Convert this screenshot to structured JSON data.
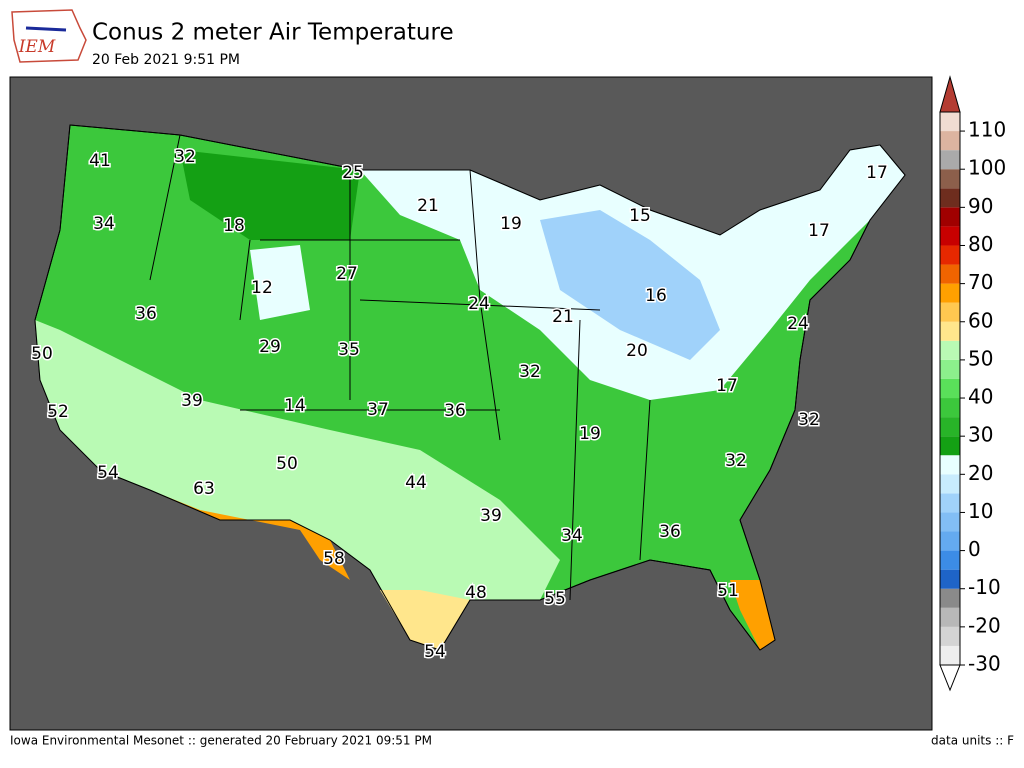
{
  "header": {
    "logo_text": "IEM",
    "title": "Conus 2 meter Air Temperature",
    "subtitle": "20 Feb 2021 9:51 PM"
  },
  "map": {
    "units": "F",
    "labels": [
      41,
      32,
      25,
      17,
      21,
      19,
      15,
      34,
      18,
      17,
      27,
      12,
      16,
      24,
      21,
      24,
      36,
      29,
      35,
      20,
      50,
      32,
      17,
      39,
      14,
      37,
      36,
      52,
      32,
      19,
      32,
      54,
      50,
      44,
      63,
      39,
      34,
      36,
      58,
      48,
      55,
      51,
      54
    ]
  },
  "colorbar": {
    "range": [
      -30,
      115
    ],
    "ticks": [
      -30,
      -20,
      -10,
      0,
      10,
      20,
      30,
      40,
      50,
      60,
      70,
      80,
      90,
      100,
      110
    ],
    "colors": [
      "#eeeeee",
      "#d4d4d4",
      "#b8b8b8",
      "#8a8a8a",
      "#1e64c8",
      "#3c8ce6",
      "#64aaf0",
      "#82bef5",
      "#a0d2fa",
      "#c8ecfd",
      "#e8ffff",
      "#14a014",
      "#28b428",
      "#3cc83c",
      "#5ae05a",
      "#8cf08c",
      "#b9fab4",
      "#ffe68c",
      "#ffc850",
      "#ffa000",
      "#f06400",
      "#e62800",
      "#c80000",
      "#a00000",
      "#6e2d1e",
      "#8c5f4b",
      "#aaaaaa",
      "#dcb4a0",
      "#f0dcd2"
    ],
    "under_color": "#ffffff",
    "over_color": "#b43c32"
  },
  "footer": {
    "left": "Iowa Environmental Mesonet :: generated 20 February 2021 09:51 PM",
    "right": "data units :: F"
  }
}
